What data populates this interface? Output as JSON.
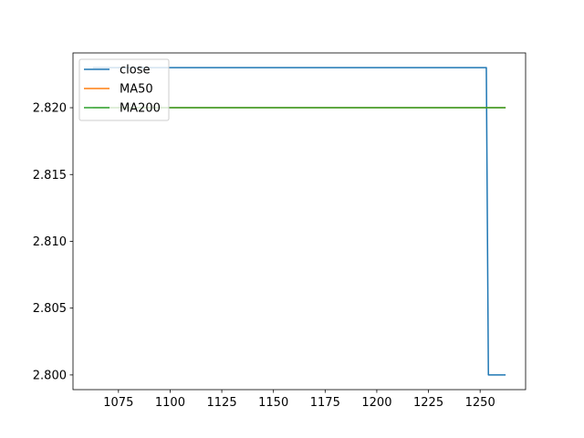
{
  "chart_data": {
    "type": "line",
    "title": "",
    "xlabel": "",
    "ylabel": "",
    "xlim": [
      1053,
      1272
    ],
    "ylim": [
      2.7989,
      2.8241
    ],
    "xticks": [
      1075,
      1100,
      1125,
      1150,
      1175,
      1200,
      1225,
      1250
    ],
    "xtick_labels": [
      "1075",
      "1100",
      "1125",
      "1150",
      "1175",
      "1200",
      "1225",
      "1250"
    ],
    "yticks": [
      2.8,
      2.805,
      2.81,
      2.815,
      2.82
    ],
    "ytick_labels": [
      "2.800",
      "2.805",
      "2.810",
      "2.815",
      "2.820"
    ],
    "grid": false,
    "legend_position": "top-left",
    "series": [
      {
        "name": "close",
        "color": "#1f77b4",
        "x": [
          1063,
          1252,
          1253,
          1254,
          1262
        ],
        "y": [
          2.823,
          2.823,
          2.823,
          2.8,
          2.8
        ]
      },
      {
        "name": "MA50",
        "color": "#ff7f0e",
        "x": [
          1063,
          1262
        ],
        "y": [
          2.82,
          2.82
        ]
      },
      {
        "name": "MA200",
        "color": "#2ca02c",
        "x": [
          1063,
          1262
        ],
        "y": [
          2.82,
          2.82
        ]
      }
    ]
  }
}
